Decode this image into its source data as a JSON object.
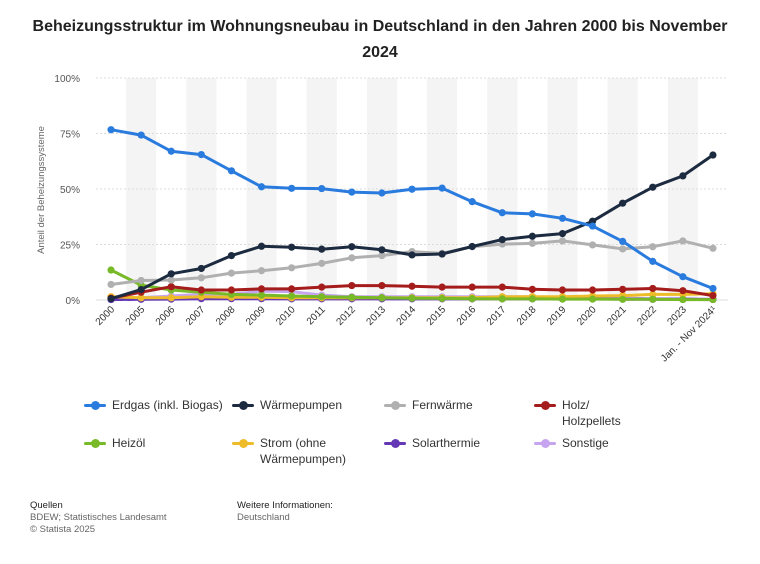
{
  "chart_data": {
    "type": "line",
    "title": "Beheizungsstruktur im Wohnungsneubau in Deutschland in den Jahren 2000 bis November 2024",
    "ylabel": "Anteil der Beheizungssysteme",
    "ylim": [
      0,
      100
    ],
    "yticks": [
      "0%",
      "25%",
      "50%",
      "75%",
      "100%"
    ],
    "ytick_values": [
      0,
      25,
      50,
      75,
      100
    ],
    "grid": true,
    "categories": [
      "2000",
      "2005",
      "2006",
      "2007",
      "2008",
      "2009",
      "2010",
      "2011",
      "2012",
      "2013",
      "2014",
      "2015",
      "2016",
      "2017",
      "2018",
      "2019",
      "2020",
      "2021",
      "2022",
      "2023",
      "Jan. - Nov 2024¹"
    ],
    "series": [
      {
        "name": "Erdgas (inkl. Biogas)",
        "color": "#2a7bde",
        "values": [
          76.7,
          74.3,
          67.0,
          65.5,
          58.2,
          51.0,
          50.3,
          50.2,
          48.6,
          48.2,
          49.9,
          50.4,
          44.3,
          39.3,
          38.8,
          36.8,
          33.3,
          26.4,
          17.4,
          10.5,
          5.2
        ]
      },
      {
        "name": "Wärmepumpen",
        "color": "#1c2b40",
        "values": [
          0.6,
          4.7,
          11.8,
          14.2,
          20.0,
          24.2,
          23.8,
          22.9,
          24.0,
          22.6,
          20.3,
          20.7,
          24.1,
          27.2,
          28.7,
          29.9,
          35.5,
          43.6,
          50.8,
          55.9,
          65.3
        ]
      },
      {
        "name": "Fernwärme",
        "color": "#b0b0b0",
        "values": [
          7.0,
          8.8,
          9.0,
          10.0,
          12.1,
          13.2,
          14.5,
          16.5,
          19.0,
          20.0,
          21.8,
          21.0,
          24.0,
          25.2,
          25.5,
          26.6,
          24.8,
          23.0,
          24.0,
          26.6,
          23.3
        ]
      },
      {
        "name": "Holz/ Holzpellets",
        "color": "#a51c1c",
        "values": [
          0.8,
          3.5,
          6.0,
          4.5,
          4.5,
          5.0,
          5.0,
          5.8,
          6.5,
          6.5,
          6.2,
          5.8,
          5.8,
          5.8,
          4.8,
          4.5,
          4.5,
          4.8,
          5.2,
          4.2,
          2.0
        ]
      },
      {
        "name": "Heizöl",
        "color": "#78b928",
        "values": [
          13.5,
          6.7,
          4.5,
          3.5,
          2.5,
          2.2,
          1.8,
          1.5,
          1.2,
          1.0,
          0.8,
          0.7,
          0.6,
          0.5,
          0.5,
          0.4,
          0.4,
          0.3,
          0.3,
          0.2,
          0.2
        ]
      },
      {
        "name": "Strom (ohne Wärmepumpen)",
        "color": "#eebc29",
        "values": [
          1.5,
          1.0,
          1.0,
          1.5,
          1.2,
          1.2,
          1.0,
          1.0,
          1.0,
          1.0,
          1.0,
          1.0,
          1.0,
          1.5,
          1.5,
          1.5,
          1.8,
          2.0,
          2.5,
          2.5,
          2.8
        ]
      },
      {
        "name": "Solarthermie",
        "color": "#6438b4",
        "values": [
          0.2,
          0.3,
          0.4,
          0.6,
          0.6,
          0.6,
          0.5,
          0.5,
          0.5,
          0.5,
          0.5,
          0.5,
          0.5,
          0.5,
          0.5,
          0.5,
          0.5,
          0.4,
          0.3,
          0.3,
          0.2
        ]
      },
      {
        "name": "Sonstige",
        "color": "#c6a4f0",
        "values": [
          0.5,
          1.0,
          1.8,
          2.5,
          2.5,
          4.0,
          3.8,
          2.2,
          1.5,
          1.5,
          1.5,
          1.5,
          1.5,
          1.5,
          1.5,
          1.0,
          1.0,
          0.8,
          0.6,
          0.5,
          0.4
        ]
      }
    ]
  },
  "legend": [
    {
      "label": "Erdgas (inkl. Biogas)",
      "color": "#2a7bde"
    },
    {
      "label": "Wärmepumpen",
      "color": "#1c2b40"
    },
    {
      "label": "Fernwärme",
      "color": "#b0b0b0"
    },
    {
      "label": "Holz/\nHolzpellets",
      "color": "#a51c1c"
    },
    {
      "label": "Heizöl",
      "color": "#78b928"
    },
    {
      "label": "Strom (ohne\nWärmepumpen)",
      "color": "#eebc29"
    },
    {
      "label": "Solarthermie",
      "color": "#6438b4"
    },
    {
      "label": "Sonstige",
      "color": "#c6a4f0"
    }
  ],
  "footer": {
    "sources_heading": "Quellen",
    "sources_line1": "BDEW; Statistisches Landesamt",
    "sources_line2": "© Statista 2025",
    "info_heading": "Weitere Informationen:",
    "info_line1": "Deutschland"
  }
}
